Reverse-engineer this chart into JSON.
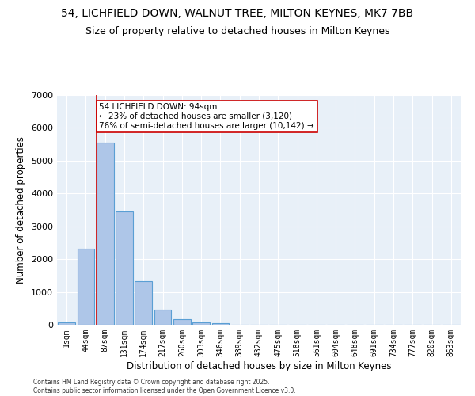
{
  "title": "54, LICHFIELD DOWN, WALNUT TREE, MILTON KEYNES, MK7 7BB",
  "subtitle": "Size of property relative to detached houses in Milton Keynes",
  "xlabel": "Distribution of detached houses by size in Milton Keynes",
  "ylabel": "Number of detached properties",
  "categories": [
    "1sqm",
    "44sqm",
    "87sqm",
    "131sqm",
    "174sqm",
    "217sqm",
    "260sqm",
    "303sqm",
    "346sqm",
    "389sqm",
    "432sqm",
    "475sqm",
    "518sqm",
    "561sqm",
    "604sqm",
    "648sqm",
    "691sqm",
    "734sqm",
    "777sqm",
    "820sqm",
    "863sqm"
  ],
  "values": [
    70,
    2320,
    5560,
    3450,
    1330,
    450,
    170,
    80,
    50,
    0,
    0,
    0,
    0,
    0,
    0,
    0,
    0,
    0,
    0,
    0,
    0
  ],
  "bar_color": "#aec6e8",
  "bar_edge_color": "#5a9fd4",
  "property_line_x": 2,
  "property_line_color": "#cc0000",
  "annotation_text": "54 LICHFIELD DOWN: 94sqm\n← 23% of detached houses are smaller (3,120)\n76% of semi-detached houses are larger (10,142) →",
  "annotation_box_color": "#ffffff",
  "annotation_box_edge_color": "#cc0000",
  "ylim": [
    0,
    7000
  ],
  "yticks": [
    0,
    1000,
    2000,
    3000,
    4000,
    5000,
    6000,
    7000
  ],
  "background_color": "#e8f0f8",
  "footer_text": "Contains HM Land Registry data © Crown copyright and database right 2025.\nContains public sector information licensed under the Open Government Licence v3.0.",
  "title_fontsize": 10,
  "subtitle_fontsize": 9,
  "tick_fontsize": 7,
  "ylabel_fontsize": 8.5,
  "xlabel_fontsize": 8.5,
  "annotation_fontsize": 7.5,
  "footer_fontsize": 5.5
}
